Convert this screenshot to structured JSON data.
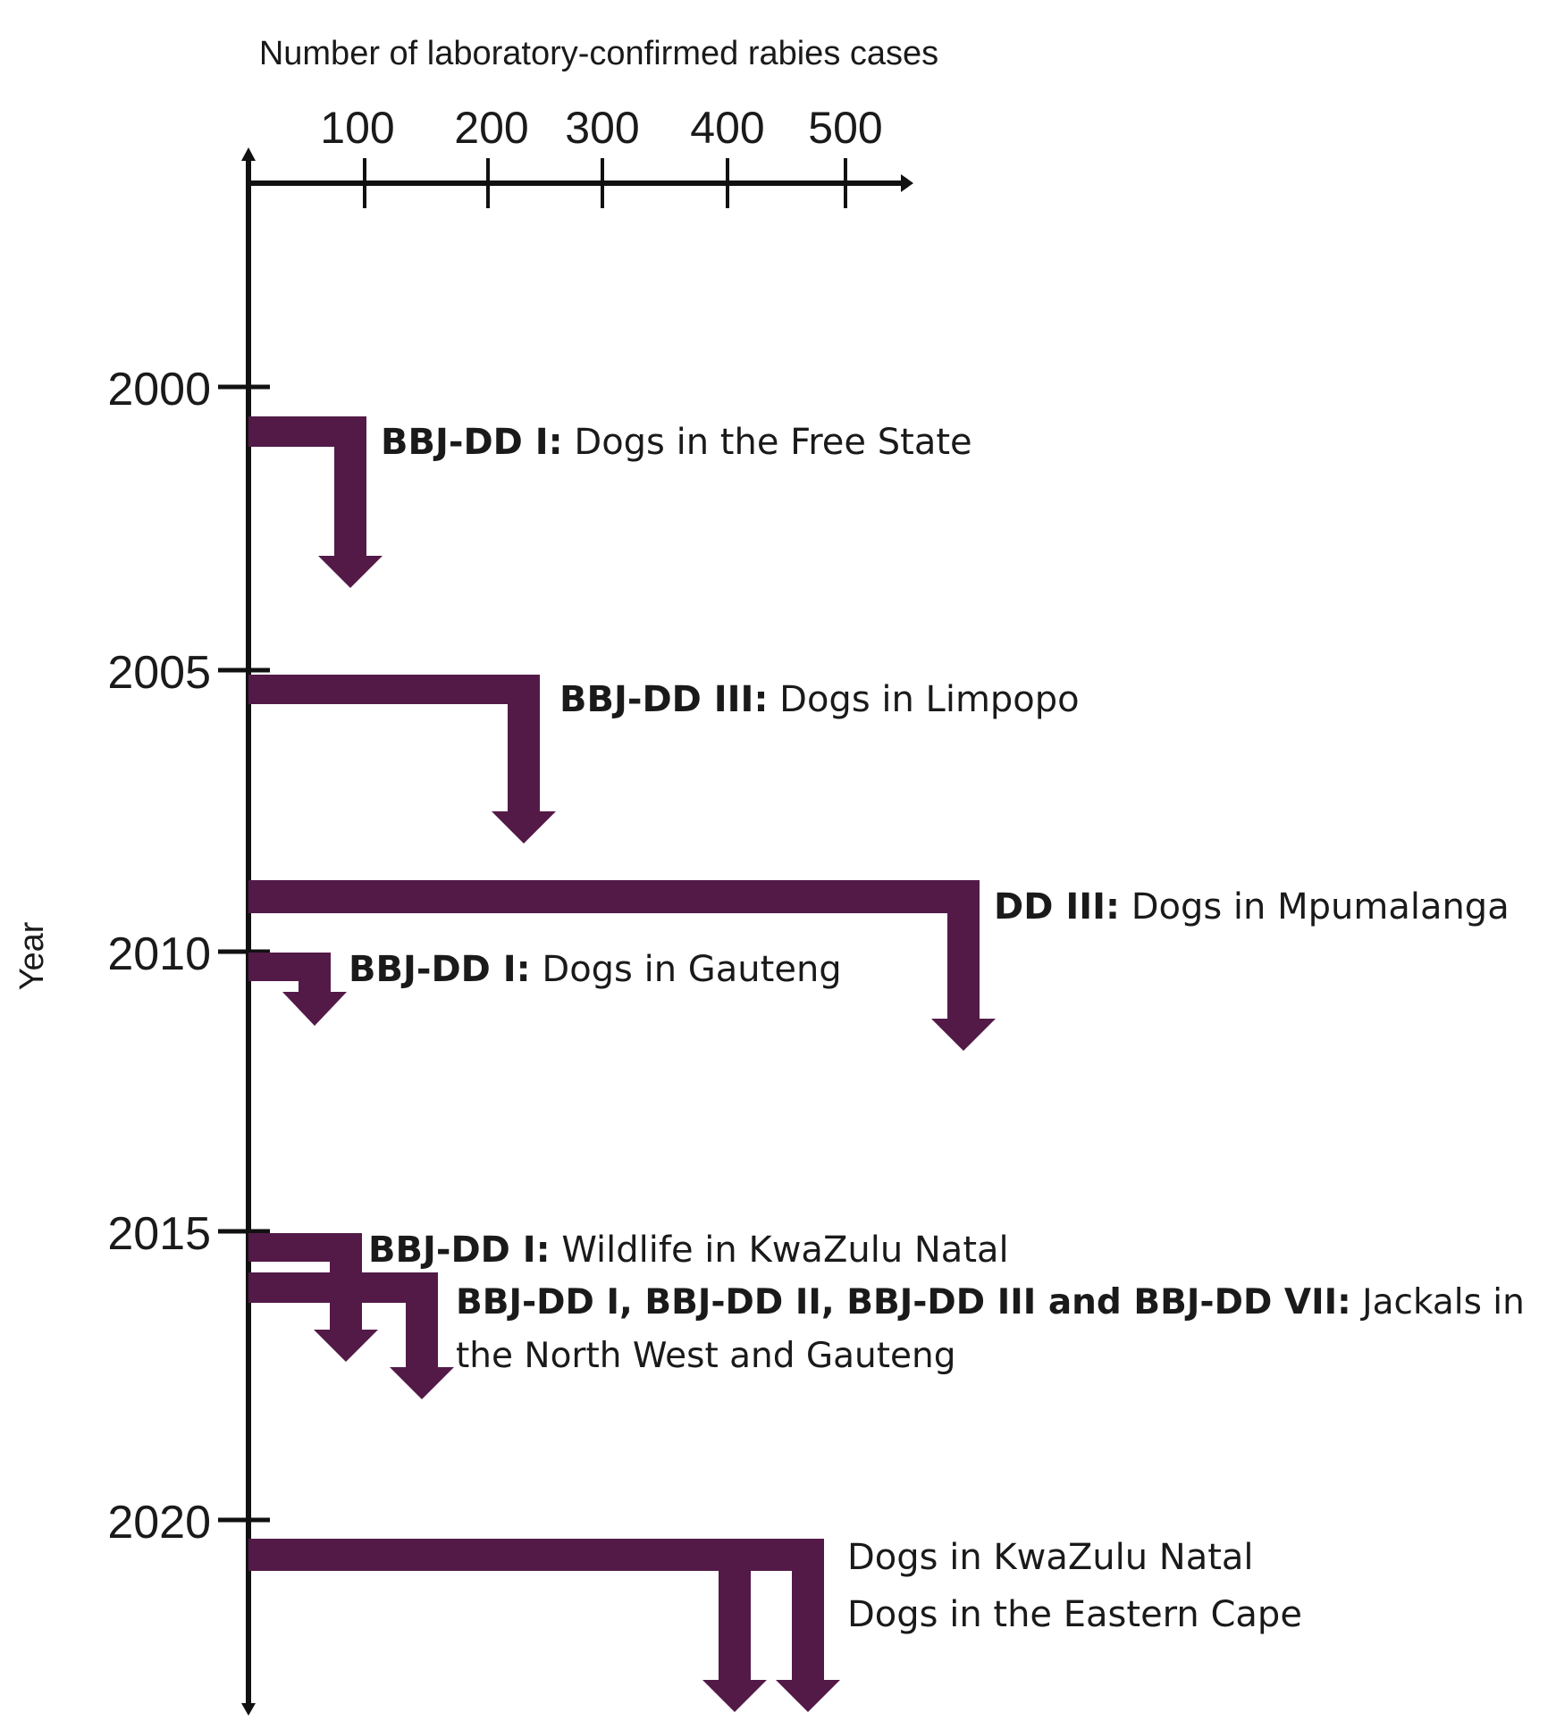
{
  "x_axis": {
    "title": "Number of laboratory-confirmed rabies cases",
    "ticks": [
      "100",
      "200",
      "300",
      "400",
      "500"
    ]
  },
  "y_axis": {
    "title": "Year",
    "ticks": [
      "2000",
      "2005",
      "2010",
      "2015",
      "2020"
    ]
  },
  "colors": {
    "arrow": "#531a48",
    "axis": "#111111"
  },
  "events": [
    {
      "bold": "BBJ-DD I:",
      "text": " Dogs  in the Free State"
    },
    {
      "bold": "BBJ-DD III:",
      "text": " Dogs in Limpopo"
    },
    {
      "bold": "DD III:",
      "text": " Dogs in Mpumalanga"
    },
    {
      "bold": "BBJ-DD I:",
      "text": " Dogs in Gauteng"
    },
    {
      "bold": "BBJ-DD I:",
      "text": " Wildlife  in KwaZulu Natal"
    },
    {
      "bold": "BBJ-DD I, BBJ-DD II, BBJ-DD III and BBJ-DD VII:",
      "text": " Jackals in",
      "text2": "the North West and Gauteng"
    },
    {
      "bold": "",
      "text": "Dogs in KwaZulu Natal"
    },
    {
      "bold": "",
      "text": "Dogs in the Eastern Cape"
    }
  ]
}
